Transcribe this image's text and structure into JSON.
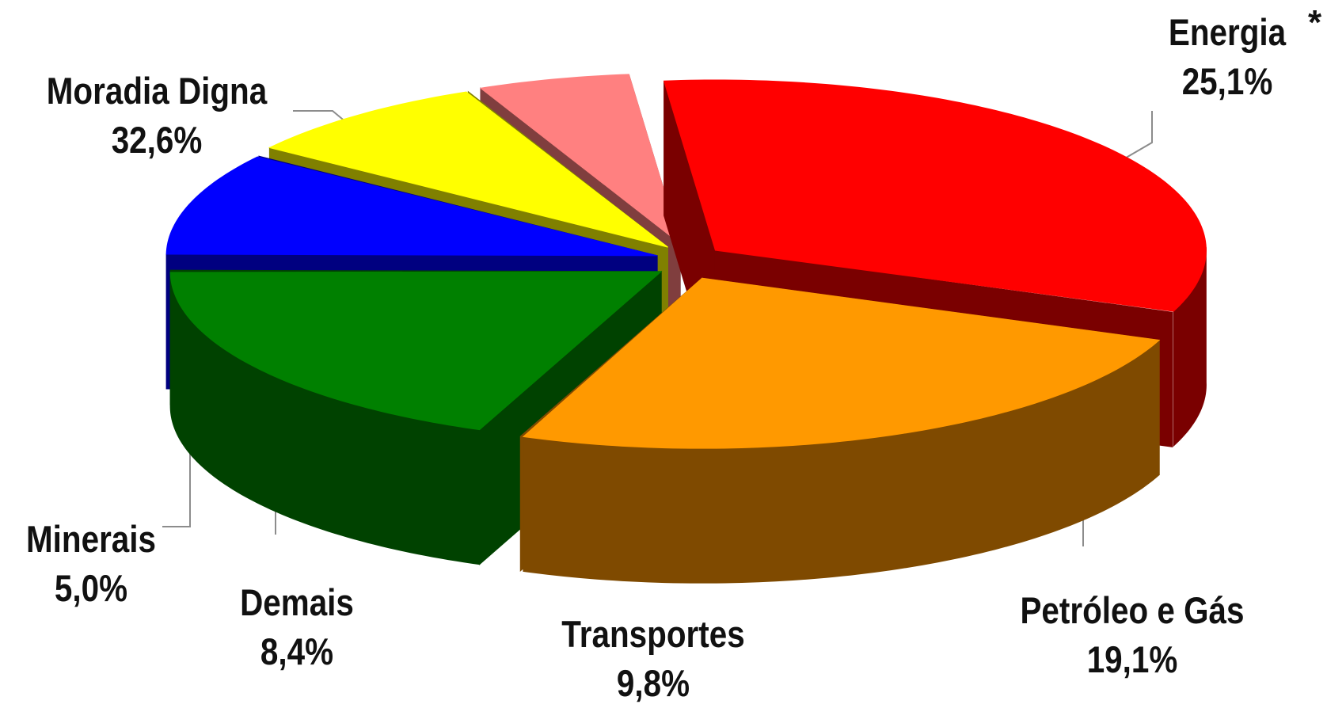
{
  "chart_data": {
    "type": "pie",
    "style": "3d-exploded",
    "slices": [
      {
        "label": "Moradia Digna",
        "value": 32.6,
        "value_text": "32,6%",
        "color": "#ff0000",
        "side_color": "#7a0000"
      },
      {
        "label": "Energia",
        "value": 25.1,
        "value_text": "25,1%",
        "color": "#ff9900",
        "side_color": "#7f4a00",
        "marker": "*"
      },
      {
        "label": "Petróleo e Gás",
        "value": 19.1,
        "value_text": "19,1%",
        "color": "#008000",
        "side_color": "#004200"
      },
      {
        "label": "Transportes",
        "value": 9.8,
        "value_text": "9,8%",
        "color": "#0000ff",
        "side_color": "#000080"
      },
      {
        "label": "Demais",
        "value": 8.4,
        "value_text": "8,4%",
        "color": "#ffff00",
        "side_color": "#808000"
      },
      {
        "label": "Minerais",
        "value": 5.0,
        "value_text": "5,0%",
        "color": "#ff8080",
        "side_color": "#803e3e"
      }
    ],
    "title": "",
    "legend": "none"
  }
}
